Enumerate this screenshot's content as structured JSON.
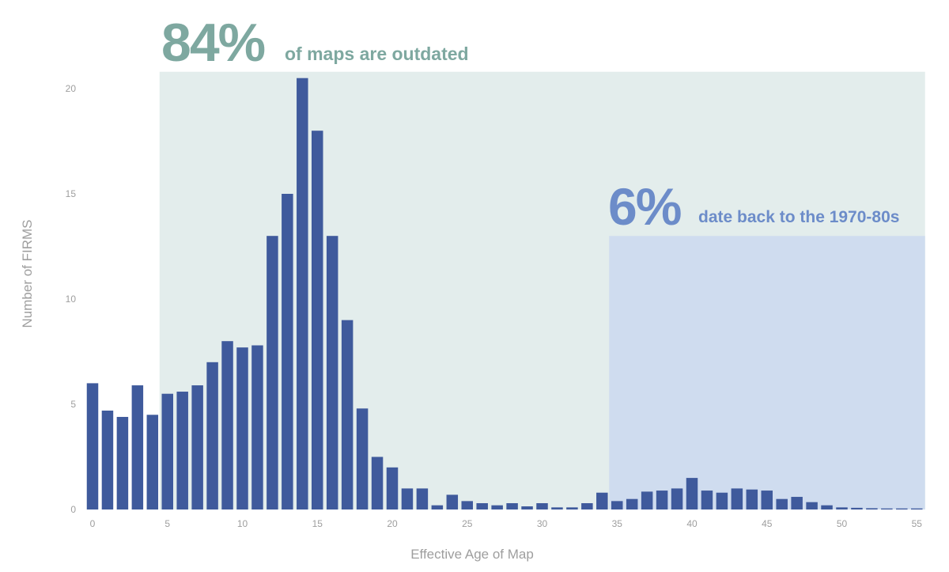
{
  "colors": {
    "bar": "#3f5a9c",
    "outdated_band": "#e3edec",
    "old_band": "#cfdcef",
    "outdated_text": "#7ea8a0",
    "old_text": "#6c8cc9",
    "axis_text": "#9e9e9e"
  },
  "annotations": {
    "outdated": {
      "value": "84%",
      "text": "of maps are outdated",
      "x_range": [
        5,
        55
      ]
    },
    "old": {
      "value": "6%",
      "text": "date back to the 1970-80s",
      "x_range": [
        35,
        55
      ],
      "y_top": 13
    }
  },
  "chart_data": {
    "type": "bar",
    "title": "",
    "xlabel": "Effective Age of Map",
    "ylabel": "Number of FIRMS",
    "x": [
      0,
      1,
      2,
      3,
      4,
      5,
      6,
      7,
      8,
      9,
      10,
      11,
      12,
      13,
      14,
      15,
      16,
      17,
      18,
      19,
      20,
      21,
      22,
      23,
      24,
      25,
      26,
      27,
      28,
      29,
      30,
      31,
      32,
      33,
      34,
      35,
      36,
      37,
      38,
      39,
      40,
      41,
      42,
      43,
      44,
      45,
      46,
      47,
      48,
      49,
      50,
      51,
      52,
      53,
      54,
      55
    ],
    "values": [
      6.0,
      4.7,
      4.4,
      5.9,
      4.5,
      5.5,
      5.6,
      5.9,
      7.0,
      8.0,
      7.7,
      7.8,
      13.0,
      15.0,
      20.5,
      18.0,
      13.0,
      9.0,
      4.8,
      2.5,
      2.0,
      1.0,
      1.0,
      0.2,
      0.7,
      0.4,
      0.3,
      0.2,
      0.3,
      0.15,
      0.3,
      0.1,
      0.1,
      0.3,
      0.8,
      0.4,
      0.5,
      0.85,
      0.9,
      1.0,
      1.5,
      0.9,
      0.8,
      1.0,
      0.95,
      0.9,
      0.5,
      0.6,
      0.35,
      0.2,
      0.1,
      0.08,
      0.06,
      0.05,
      0.05,
      0.05
    ],
    "xlim": [
      0,
      55
    ],
    "ylim": [
      0,
      20.8
    ],
    "x_ticks": [
      "0",
      "5",
      "10",
      "15",
      "20",
      "25",
      "30",
      "35",
      "40",
      "45",
      "50",
      "55"
    ],
    "y_ticks": [
      "0",
      "5",
      "10",
      "15",
      "20"
    ],
    "grid": false,
    "legend": "none"
  }
}
